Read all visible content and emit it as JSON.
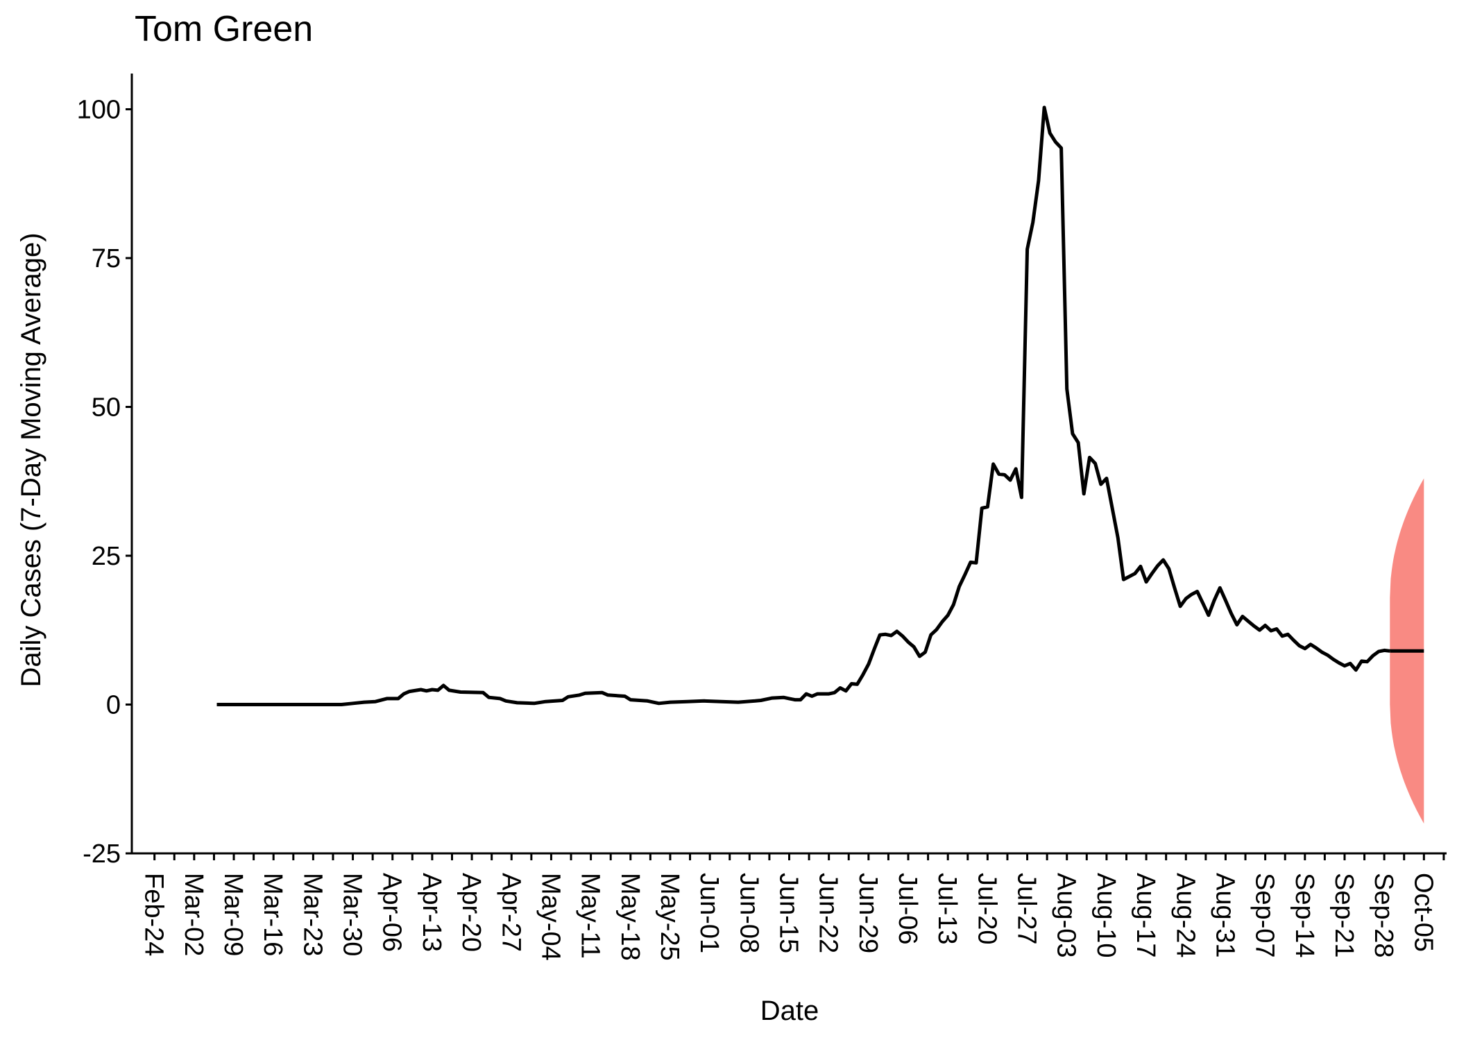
{
  "chart_data": {
    "type": "line",
    "title": "Tom Green",
    "xlabel": "Date",
    "ylabel": "Daily Cases (7-Day Moving Average)",
    "year": 2020,
    "xlim": [
      "2020-02-20",
      "2020-10-09"
    ],
    "ylim": [
      -25,
      106
    ],
    "yticks": [
      -25,
      0,
      25,
      50,
      75,
      100
    ],
    "xticks": [
      "Feb-24",
      "Mar-02",
      "Mar-09",
      "Mar-16",
      "Mar-23",
      "Mar-30",
      "Apr-06",
      "Apr-13",
      "Apr-20",
      "Apr-27",
      "May-04",
      "May-11",
      "May-18",
      "May-25",
      "Jun-01",
      "Jun-08",
      "Jun-15",
      "Jun-22",
      "Jun-29",
      "Jul-06",
      "Jul-13",
      "Jul-20",
      "Jul-27",
      "Aug-03",
      "Aug-10",
      "Aug-17",
      "Aug-24",
      "Aug-31",
      "Sep-07",
      "Sep-14",
      "Sep-21",
      "Sep-28",
      "Oct-05"
    ],
    "grid": false,
    "legend": "none",
    "line_color": "#000000",
    "band_color": "#F8766D",
    "series": [
      {
        "values": [
          [
            "2020-03-06",
            0
          ],
          [
            "2020-03-12",
            0
          ],
          [
            "2020-03-18",
            0
          ],
          [
            "2020-03-24",
            0
          ],
          [
            "2020-03-28",
            0
          ],
          [
            "2020-03-30",
            0.2
          ],
          [
            "2020-04-01",
            0.4
          ],
          [
            "2020-04-03",
            0.5
          ],
          [
            "2020-04-05",
            1.0
          ],
          [
            "2020-04-07",
            1.0
          ],
          [
            "2020-04-08",
            1.8
          ],
          [
            "2020-04-09",
            2.2
          ],
          [
            "2020-04-11",
            2.5
          ],
          [
            "2020-04-12",
            2.3
          ],
          [
            "2020-04-13",
            2.5
          ],
          [
            "2020-04-14",
            2.4
          ],
          [
            "2020-04-15",
            3.2
          ],
          [
            "2020-04-16",
            2.4
          ],
          [
            "2020-04-18",
            2.1
          ],
          [
            "2020-04-22",
            2.0
          ],
          [
            "2020-04-23",
            1.2
          ],
          [
            "2020-04-25",
            1.0
          ],
          [
            "2020-04-26",
            0.6
          ],
          [
            "2020-04-28",
            0.3
          ],
          [
            "2020-05-01",
            0.2
          ],
          [
            "2020-05-03",
            0.5
          ],
          [
            "2020-05-06",
            0.7
          ],
          [
            "2020-05-07",
            1.3
          ],
          [
            "2020-05-09",
            1.6
          ],
          [
            "2020-05-10",
            1.9
          ],
          [
            "2020-05-13",
            2.0
          ],
          [
            "2020-05-14",
            1.6
          ],
          [
            "2020-05-17",
            1.4
          ],
          [
            "2020-05-18",
            0.8
          ],
          [
            "2020-05-21",
            0.6
          ],
          [
            "2020-05-23",
            0.2
          ],
          [
            "2020-05-25",
            0.4
          ],
          [
            "2020-05-28",
            0.5
          ],
          [
            "2020-05-31",
            0.6
          ],
          [
            "2020-06-03",
            0.5
          ],
          [
            "2020-06-06",
            0.4
          ],
          [
            "2020-06-09",
            0.6
          ],
          [
            "2020-06-10",
            0.7
          ],
          [
            "2020-06-12",
            1.1
          ],
          [
            "2020-06-14",
            1.2
          ],
          [
            "2020-06-15",
            1.0
          ],
          [
            "2020-06-16",
            0.8
          ],
          [
            "2020-06-17",
            0.8
          ],
          [
            "2020-06-18",
            1.8
          ],
          [
            "2020-06-19",
            1.4
          ],
          [
            "2020-06-20",
            1.8
          ],
          [
            "2020-06-22",
            1.8
          ],
          [
            "2020-06-23",
            2.0
          ],
          [
            "2020-06-24",
            2.8
          ],
          [
            "2020-06-25",
            2.3
          ],
          [
            "2020-06-26",
            3.5
          ],
          [
            "2020-06-27",
            3.4
          ],
          [
            "2020-06-28",
            5.0
          ],
          [
            "2020-06-29",
            6.8
          ],
          [
            "2020-06-30",
            9.3
          ],
          [
            "2020-07-01",
            11.7
          ],
          [
            "2020-07-02",
            11.8
          ],
          [
            "2020-07-03",
            11.6
          ],
          [
            "2020-07-04",
            12.3
          ],
          [
            "2020-07-05",
            11.5
          ],
          [
            "2020-07-06",
            10.5
          ],
          [
            "2020-07-07",
            9.7
          ],
          [
            "2020-07-08",
            8.1
          ],
          [
            "2020-07-09",
            8.8
          ],
          [
            "2020-07-10",
            11.7
          ],
          [
            "2020-07-11",
            12.6
          ],
          [
            "2020-07-12",
            13.9
          ],
          [
            "2020-07-13",
            15.0
          ],
          [
            "2020-07-14",
            16.8
          ],
          [
            "2020-07-15",
            19.8
          ],
          [
            "2020-07-16",
            21.8
          ],
          [
            "2020-07-17",
            23.9
          ],
          [
            "2020-07-18",
            23.8
          ],
          [
            "2020-07-19",
            33.0
          ],
          [
            "2020-07-20",
            33.2
          ],
          [
            "2020-07-21",
            40.4
          ],
          [
            "2020-07-22",
            38.7
          ],
          [
            "2020-07-23",
            38.6
          ],
          [
            "2020-07-24",
            37.7
          ],
          [
            "2020-07-25",
            39.6
          ],
          [
            "2020-07-26",
            34.8
          ],
          [
            "2020-07-27",
            76.5
          ],
          [
            "2020-07-28",
            81.0
          ],
          [
            "2020-07-29",
            88.0
          ],
          [
            "2020-07-30",
            100.3
          ],
          [
            "2020-07-31",
            96.0
          ],
          [
            "2020-08-01",
            94.5
          ],
          [
            "2020-08-02",
            93.5
          ],
          [
            "2020-08-03",
            53.0
          ],
          [
            "2020-08-04",
            45.5
          ],
          [
            "2020-08-05",
            44.0
          ],
          [
            "2020-08-06",
            35.4
          ],
          [
            "2020-08-07",
            41.5
          ],
          [
            "2020-08-08",
            40.5
          ],
          [
            "2020-08-09",
            37.0
          ],
          [
            "2020-08-10",
            38.0
          ],
          [
            "2020-08-11",
            33.0
          ],
          [
            "2020-08-12",
            28.0
          ],
          [
            "2020-08-13",
            21.0
          ],
          [
            "2020-08-14",
            21.5
          ],
          [
            "2020-08-15",
            22.0
          ],
          [
            "2020-08-16",
            23.2
          ],
          [
            "2020-08-17",
            20.6
          ],
          [
            "2020-08-18",
            22.0
          ],
          [
            "2020-08-19",
            23.3
          ],
          [
            "2020-08-20",
            24.3
          ],
          [
            "2020-08-21",
            22.8
          ],
          [
            "2020-08-22",
            19.6
          ],
          [
            "2020-08-23",
            16.5
          ],
          [
            "2020-08-24",
            17.8
          ],
          [
            "2020-08-25",
            18.5
          ],
          [
            "2020-08-26",
            19.0
          ],
          [
            "2020-08-27",
            17.0
          ],
          [
            "2020-08-28",
            15.0
          ],
          [
            "2020-08-29",
            17.5
          ],
          [
            "2020-08-30",
            19.6
          ],
          [
            "2020-08-31",
            17.5
          ],
          [
            "2020-09-01",
            15.3
          ],
          [
            "2020-09-02",
            13.4
          ],
          [
            "2020-09-03",
            14.8
          ],
          [
            "2020-09-04",
            14.0
          ],
          [
            "2020-09-05",
            13.2
          ],
          [
            "2020-09-06",
            12.5
          ],
          [
            "2020-09-07",
            13.3
          ],
          [
            "2020-09-08",
            12.4
          ],
          [
            "2020-09-09",
            12.7
          ],
          [
            "2020-09-10",
            11.5
          ],
          [
            "2020-09-11",
            11.8
          ],
          [
            "2020-09-12",
            10.8
          ],
          [
            "2020-09-13",
            9.9
          ],
          [
            "2020-09-14",
            9.4
          ],
          [
            "2020-09-15",
            10.1
          ],
          [
            "2020-09-16",
            9.5
          ],
          [
            "2020-09-17",
            8.8
          ],
          [
            "2020-09-18",
            8.3
          ],
          [
            "2020-09-19",
            7.6
          ],
          [
            "2020-09-20",
            7.0
          ],
          [
            "2020-09-21",
            6.5
          ],
          [
            "2020-09-22",
            6.9
          ],
          [
            "2020-09-23",
            5.8
          ],
          [
            "2020-09-24",
            7.3
          ],
          [
            "2020-09-25",
            7.2
          ],
          [
            "2020-09-26",
            8.2
          ],
          [
            "2020-09-27",
            8.9
          ],
          [
            "2020-09-28",
            9.1
          ],
          [
            "2020-09-29",
            9.0
          ]
        ]
      },
      {
        "type": "forecast",
        "values": [
          [
            "2020-09-29",
            9.0
          ],
          [
            "2020-10-05",
            9.0
          ]
        ]
      }
    ],
    "band": {
      "x_start": "2020-09-29",
      "x_end": "2020-10-05",
      "start": [
        0,
        18
      ],
      "end": [
        -20,
        38
      ]
    }
  }
}
